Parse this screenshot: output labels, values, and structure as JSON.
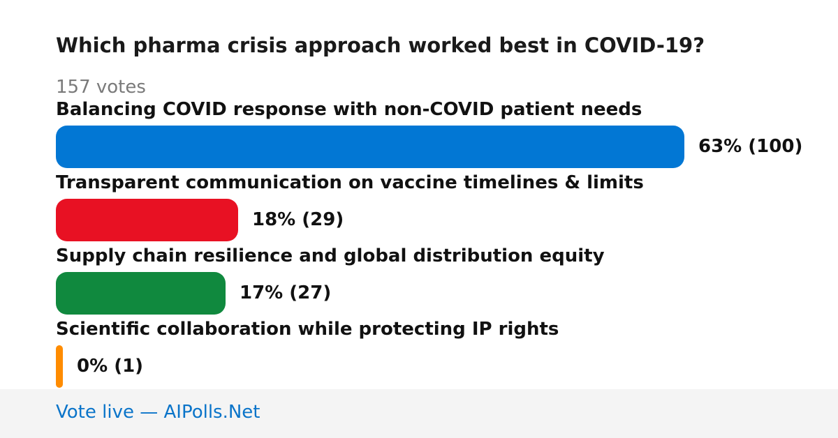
{
  "poll": {
    "question": "Which pharma crisis approach worked best in COVID-19?",
    "votes_text": "157 votes"
  },
  "chart_data": {
    "type": "bar",
    "orientation": "horizontal",
    "title": "Which pharma crisis approach worked best in COVID-19?",
    "total_votes": 157,
    "categories": [
      "Balancing COVID response with non-COVID patient needs",
      "Transparent communication on vaccine timelines & limits",
      "Supply chain resilience and global distribution equity",
      "Scientific collaboration while protecting IP rights"
    ],
    "values": [
      100,
      29,
      27,
      1
    ],
    "percents": [
      63,
      18,
      17,
      0
    ],
    "value_labels": [
      "63% (100)",
      "18% (29)",
      "17% (27)",
      "0% (1)"
    ],
    "colors": [
      "#0277d4",
      "#e81123",
      "#10893e",
      "#ff8c00"
    ],
    "grid": false,
    "legend": "none"
  },
  "footer": {
    "link_text": "Vote live — AIPolls.Net"
  }
}
